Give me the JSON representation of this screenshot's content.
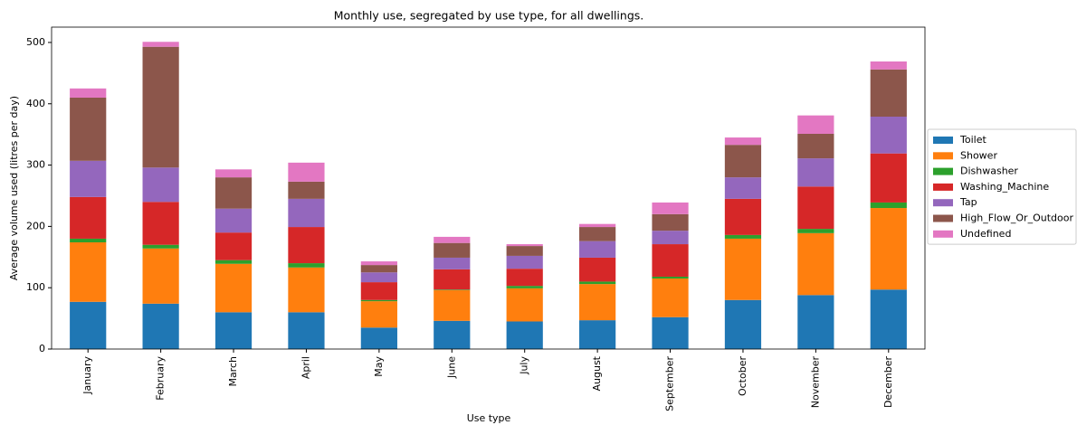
{
  "chart_data": {
    "type": "stacked_bar",
    "title": "Monthly use, segregated by use type, for all dwellings.",
    "x_label": "Use type",
    "y_label": "Average volume used (litres per day)",
    "categories": [
      "January",
      "February",
      "March",
      "April",
      "May",
      "June",
      "July",
      "August",
      "September",
      "October",
      "November",
      "December"
    ],
    "series": [
      {
        "name": "Toilet",
        "color": "#1f77b4",
        "values": [
          77,
          74,
          60,
          60,
          35,
          46,
          45,
          47,
          52,
          80,
          88,
          97
        ]
      },
      {
        "name": "Shower",
        "color": "#ff7f0e",
        "values": [
          97,
          90,
          79,
          73,
          43,
          50,
          54,
          59,
          63,
          100,
          101,
          133
        ]
      },
      {
        "name": "Dishwasher",
        "color": "#2ca02c",
        "values": [
          6,
          6,
          6,
          7,
          2,
          1,
          4,
          4,
          3,
          6,
          7,
          9
        ]
      },
      {
        "name": "Washing_Machine",
        "color": "#d62728",
        "values": [
          68,
          70,
          45,
          59,
          29,
          33,
          28,
          39,
          53,
          59,
          69,
          80
        ]
      },
      {
        "name": "Tap",
        "color": "#9467bd",
        "values": [
          59,
          56,
          39,
          46,
          16,
          19,
          21,
          27,
          22,
          35,
          46,
          60
        ]
      },
      {
        "name": "High_Flow_Or_Outdoor",
        "color": "#8c564b",
        "values": [
          103,
          197,
          51,
          28,
          12,
          24,
          16,
          23,
          27,
          53,
          40,
          77
        ]
      },
      {
        "name": "Undefined",
        "color": "#e377c2",
        "values": [
          15,
          8,
          13,
          31,
          6,
          10,
          3,
          5,
          19,
          12,
          30,
          13
        ]
      }
    ],
    "ylim": [
      0,
      525
    ],
    "yticks": [
      0,
      100,
      200,
      300,
      400,
      500
    ],
    "grid": false,
    "legend": "right"
  }
}
